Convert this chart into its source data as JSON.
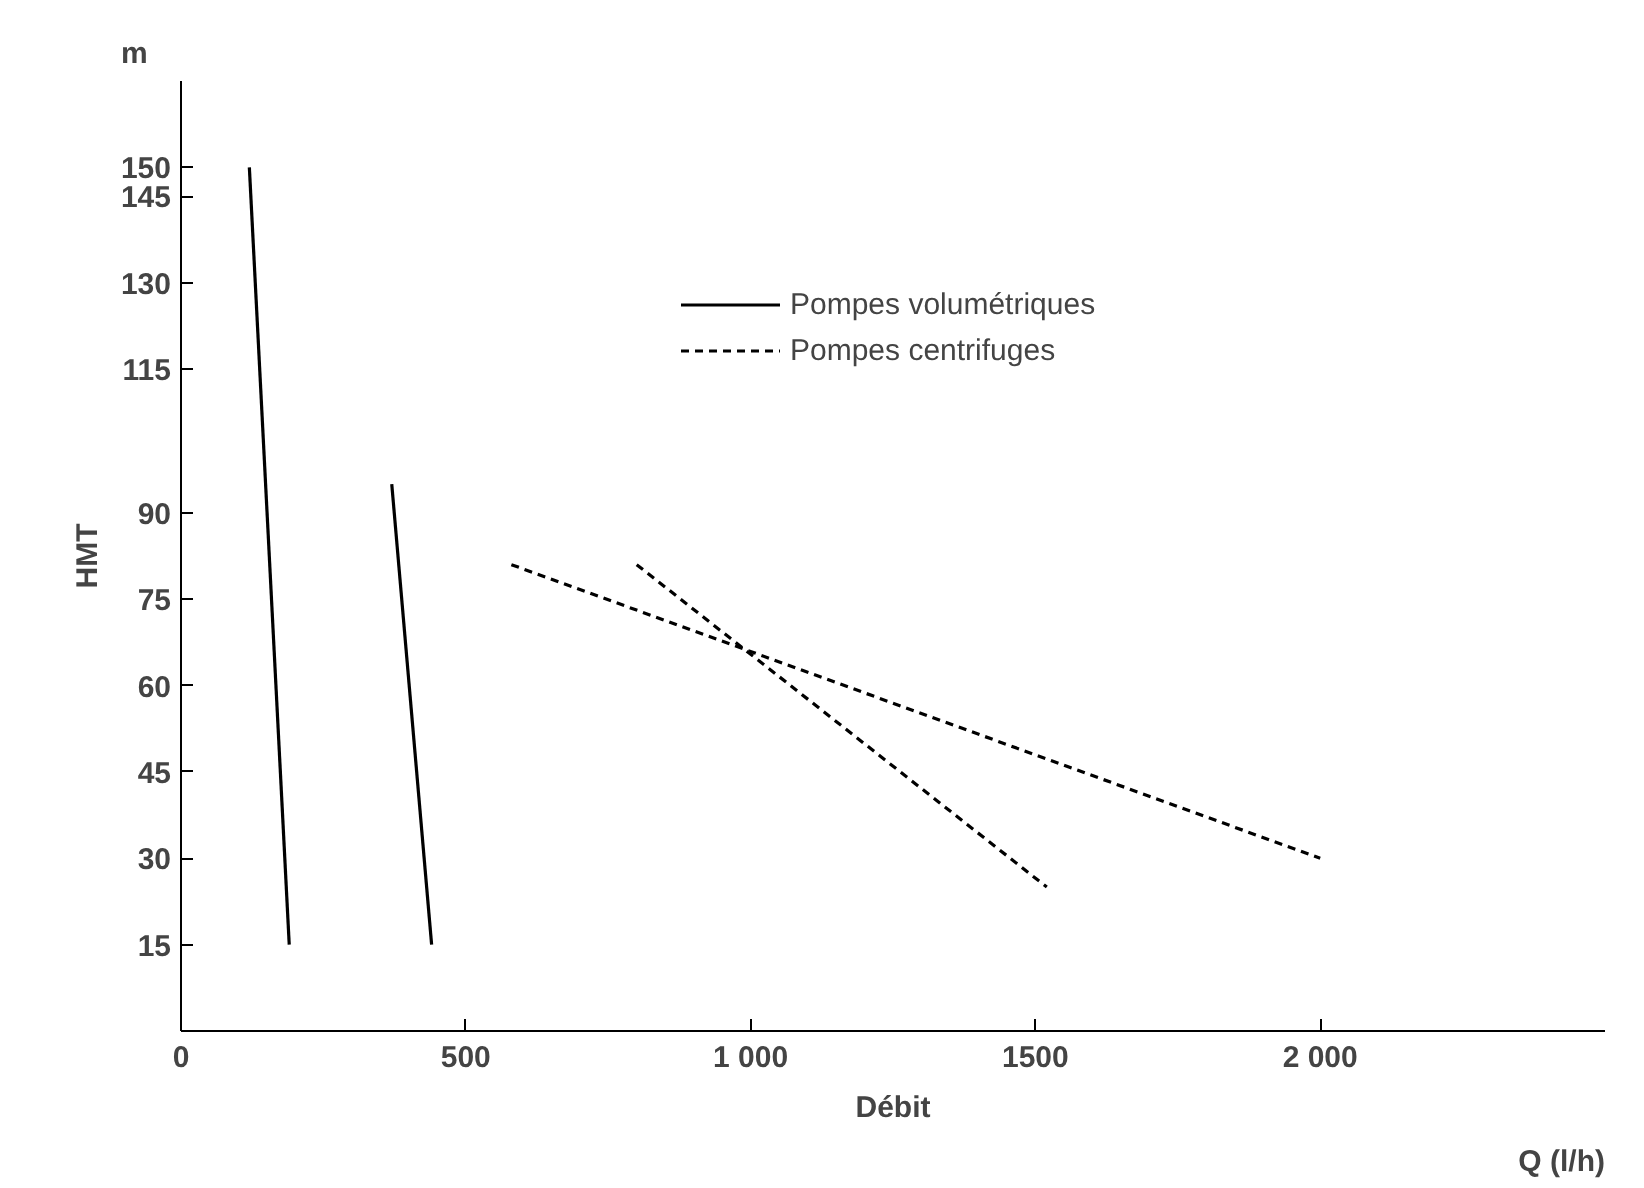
{
  "chart_data": {
    "type": "line",
    "xlabel": "Débit",
    "ylabel": "HMT",
    "annotations": [
      "m",
      "Q (l/h)"
    ],
    "series": [
      {
        "name": "Pompes volumétriques",
        "color": "#000000",
        "line_style": "solid",
        "x": [
          120,
          190
        ],
        "values": [
          150,
          15
        ]
      },
      {
        "color": "#000000",
        "line_style": "solid",
        "x": [
          370,
          440
        ],
        "values": [
          95,
          15
        ]
      },
      {
        "name": "Pompes centrifuges",
        "color": "#000000",
        "line_style": "dashed",
        "x": [
          580,
          2000
        ],
        "values": [
          81,
          30
        ]
      },
      {
        "color": "#000000",
        "line_style": "dashed",
        "x": [
          800,
          1520
        ],
        "values": [
          81,
          25
        ]
      }
    ],
    "xlim": [
      0,
      2500
    ],
    "ylim": [
      0,
      165
    ],
    "xticks": [
      0,
      500,
      {
        "value": 1000,
        "label": "1 000"
      },
      1500,
      {
        "value": 2000,
        "label": "2 000"
      }
    ],
    "yticks": [
      15,
      30,
      45,
      60,
      75,
      90,
      115,
      130,
      145,
      150
    ],
    "grid": false,
    "legend": "top right",
    "marker": "none"
  }
}
